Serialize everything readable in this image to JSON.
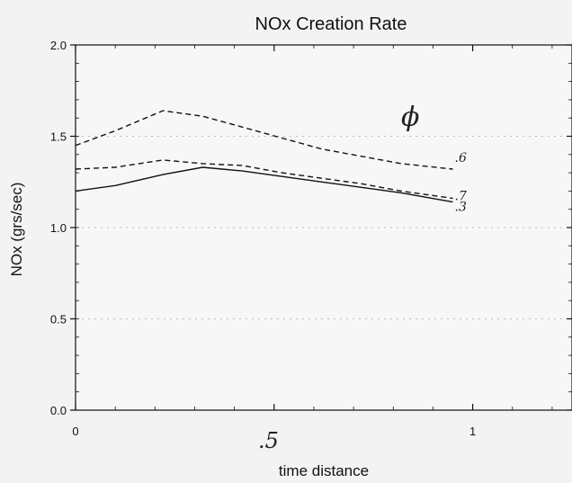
{
  "chart_data": {
    "type": "line",
    "title": "NOx Creation Rate",
    "xlabel": "time distance",
    "ylabel": "NOx (grs/sec)",
    "xlim": [
      0,
      1.25
    ],
    "ylim": [
      0,
      2.0
    ],
    "x_ticks": [
      {
        "value": 0,
        "label": "0"
      },
      {
        "value": 1,
        "label": "1"
      }
    ],
    "y_ticks": [
      {
        "value": 0.0,
        "label": "0.0"
      },
      {
        "value": 0.5,
        "label": "0.5"
      },
      {
        "value": 1.0,
        "label": "1.0"
      },
      {
        "value": 1.5,
        "label": "1.5"
      },
      {
        "value": 2.0,
        "label": "2.0"
      }
    ],
    "grid": "dotted horizontal",
    "series": [
      {
        "name": ".6",
        "style": "dashed",
        "x": [
          0.0,
          0.1,
          0.22,
          0.32,
          0.42,
          0.52,
          0.62,
          0.72,
          0.82,
          0.95
        ],
        "y": [
          1.45,
          1.53,
          1.64,
          1.61,
          1.55,
          1.49,
          1.43,
          1.39,
          1.35,
          1.32
        ]
      },
      {
        "name": ".7",
        "style": "dashed",
        "x": [
          0.0,
          0.1,
          0.22,
          0.32,
          0.42,
          0.52,
          0.62,
          0.72,
          0.82,
          0.95
        ],
        "y": [
          1.32,
          1.33,
          1.37,
          1.35,
          1.34,
          1.3,
          1.27,
          1.24,
          1.2,
          1.16
        ]
      },
      {
        "name": ".3",
        "style": "solid",
        "x": [
          0.0,
          0.1,
          0.22,
          0.32,
          0.42,
          0.52,
          0.62,
          0.72,
          0.82,
          0.95
        ],
        "y": [
          1.2,
          1.23,
          1.29,
          1.33,
          1.31,
          1.28,
          1.25,
          1.22,
          1.19,
          1.14
        ]
      }
    ],
    "annotations": {
      "phi": "ϕ",
      "mid_label": ".5"
    }
  }
}
